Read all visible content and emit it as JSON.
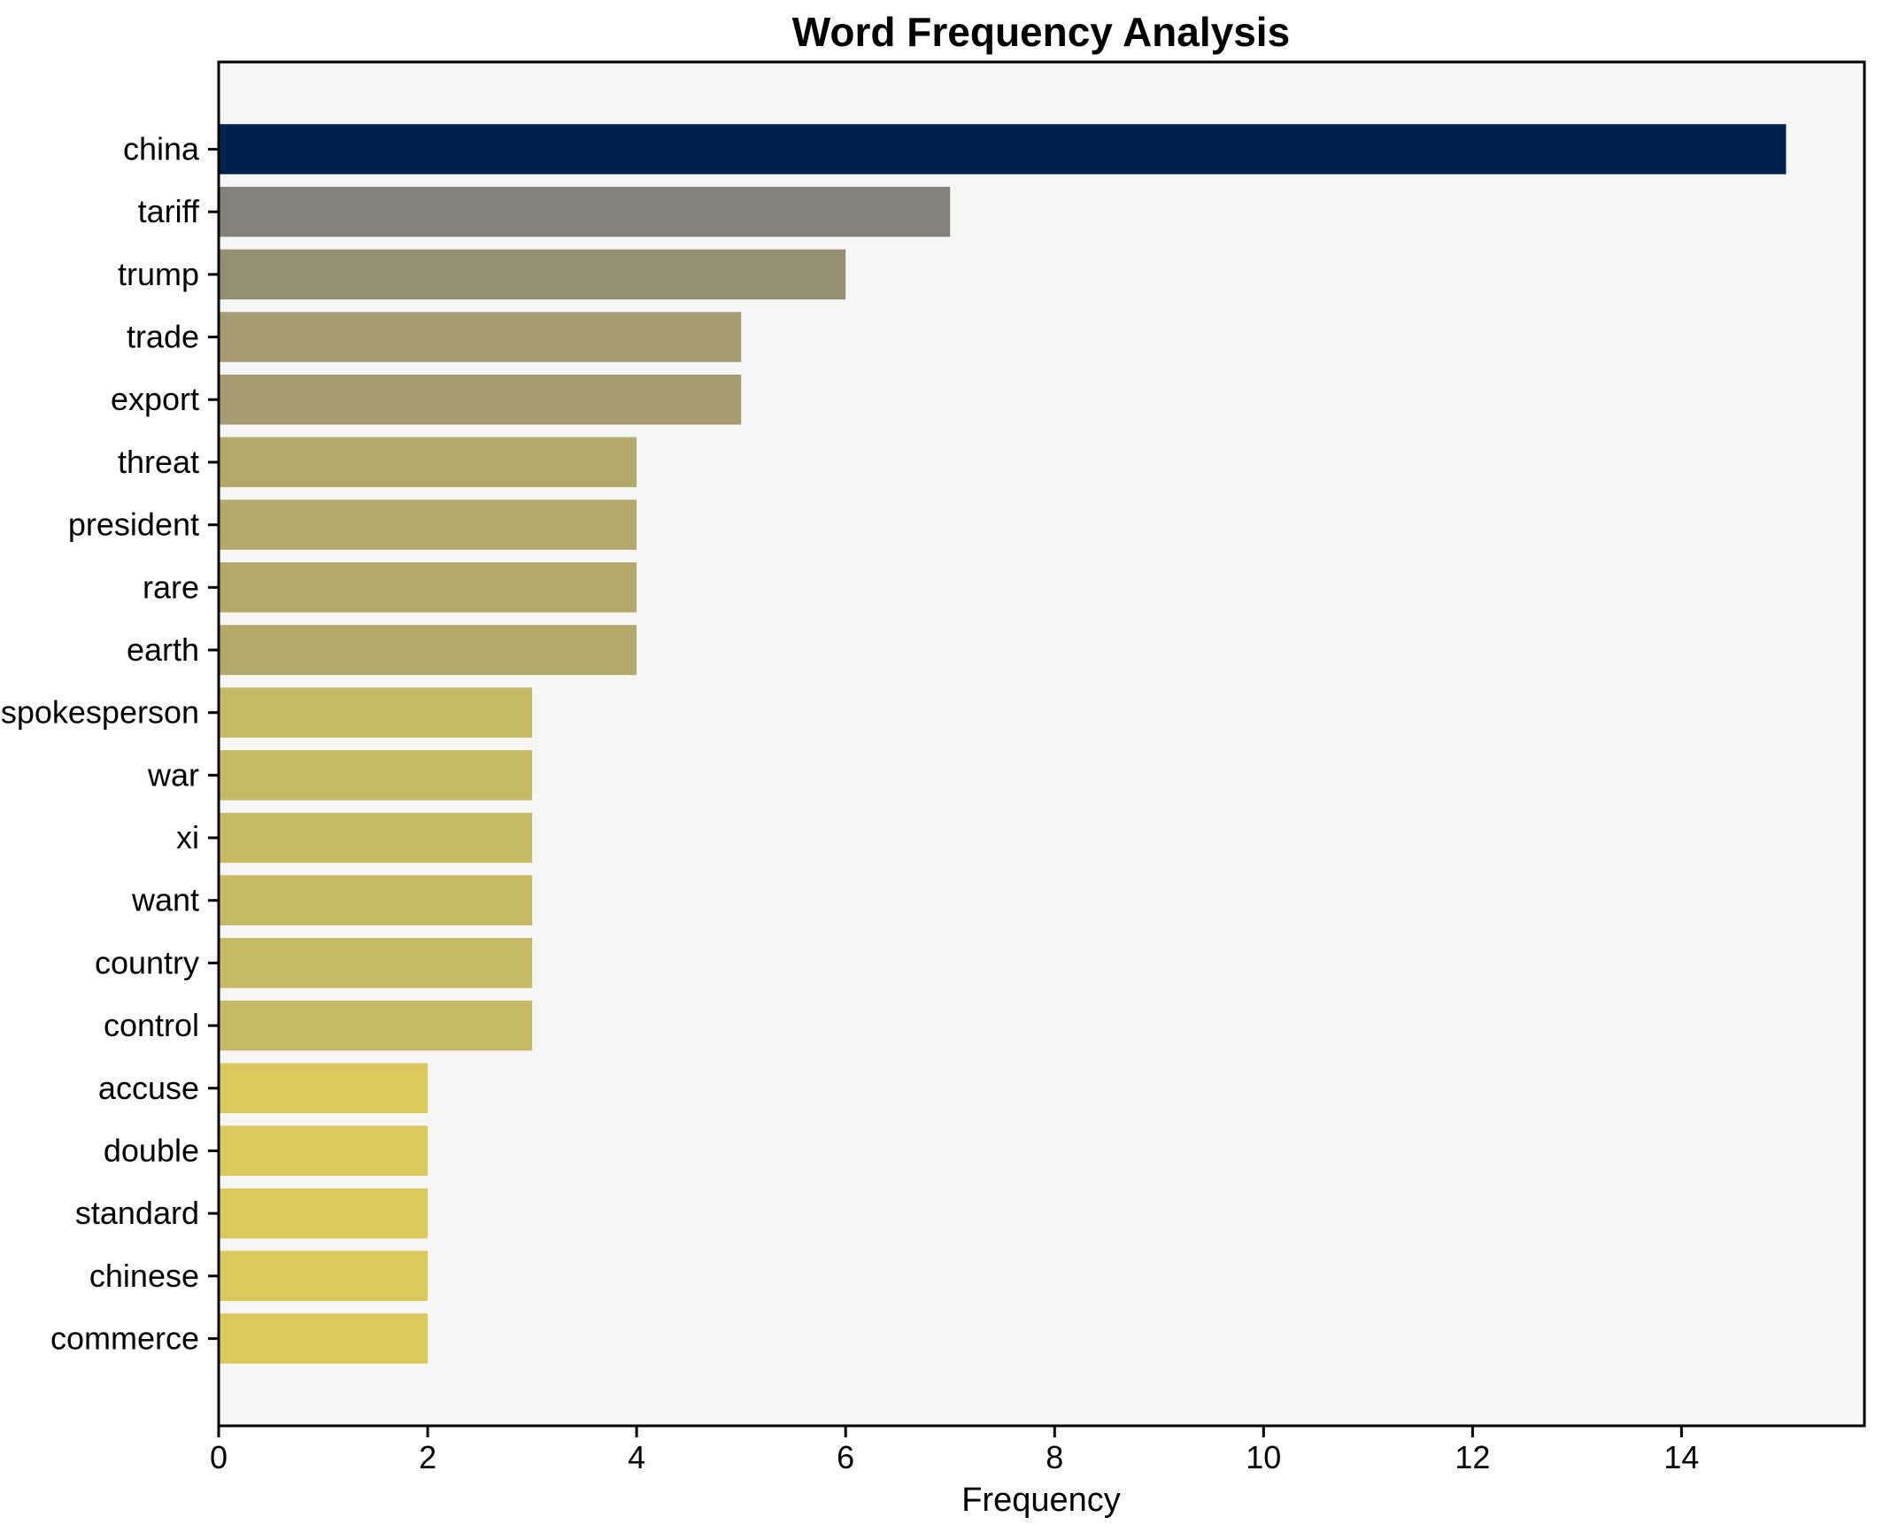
{
  "header": {
    "title": "Word Frequency Analysis"
  },
  "chart_data": {
    "type": "bar",
    "orientation": "horizontal",
    "title": "Word Frequency Analysis",
    "xlabel": "Frequency",
    "ylabel": "",
    "categories": [
      "china",
      "tariff",
      "trump",
      "trade",
      "export",
      "threat",
      "president",
      "rare",
      "earth",
      "spokesperson",
      "war",
      "xi",
      "want",
      "country",
      "control",
      "accuse",
      "double",
      "standard",
      "chinese",
      "commerce"
    ],
    "values": [
      15,
      7,
      6,
      5,
      5,
      4,
      4,
      4,
      4,
      3,
      3,
      3,
      3,
      3,
      3,
      2,
      2,
      2,
      2,
      2
    ],
    "bar_colors": [
      "#01214e",
      "#83817a",
      "#93906f",
      "#a59c72",
      "#a59c72",
      "#b3a96b",
      "#b3a96b",
      "#b3a96b",
      "#b3a96b",
      "#c5b964",
      "#c5b964",
      "#c5b964",
      "#c5b964",
      "#c5b964",
      "#c5b964",
      "#dbc85c",
      "#dbc85c",
      "#dbc85c",
      "#dbc85c",
      "#dbc85c"
    ],
    "xlim": [
      0,
      15.75
    ],
    "xticks": [
      0,
      2,
      4,
      6,
      8,
      10,
      12,
      14
    ],
    "grid": false,
    "legend": "none",
    "colors": {
      "figure_background": "#fdfdfd",
      "axes_background": "#f6f6f5",
      "spine": "#000000",
      "text": "#000000"
    }
  }
}
